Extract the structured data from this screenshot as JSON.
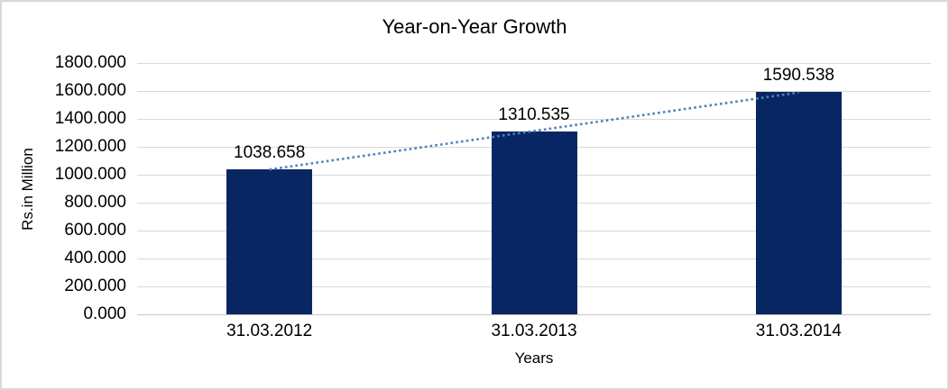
{
  "chart_data": {
    "type": "bar",
    "title": "Year-on-Year Growth",
    "xlabel": "Years",
    "ylabel": "Rs.in Million",
    "categories": [
      "31.03.2012",
      "31.03.2013",
      "31.03.2014"
    ],
    "values": [
      1038.658,
      1310.535,
      1590.538
    ],
    "data_labels": [
      "1038.658",
      "1310.535",
      "1590.538"
    ],
    "ylim": [
      0,
      1800
    ],
    "ytick_step": 200,
    "ytick_labels": [
      "0.000",
      "200.000",
      "400.000",
      "600.000",
      "800.000",
      "1000.000",
      "1200.000",
      "1400.000",
      "1600.000",
      "1800.000"
    ],
    "grid": true,
    "legend": "none",
    "bar_color": "#082661",
    "trendline": {
      "type": "linear",
      "style": "dotted",
      "color": "#4f81bd"
    },
    "colors": {
      "gridline": "#d9d9d9",
      "axis_line": "#c6c6c6",
      "text": "#000000",
      "background": "#ffffff",
      "frame_border": "#d8d8d8"
    }
  }
}
